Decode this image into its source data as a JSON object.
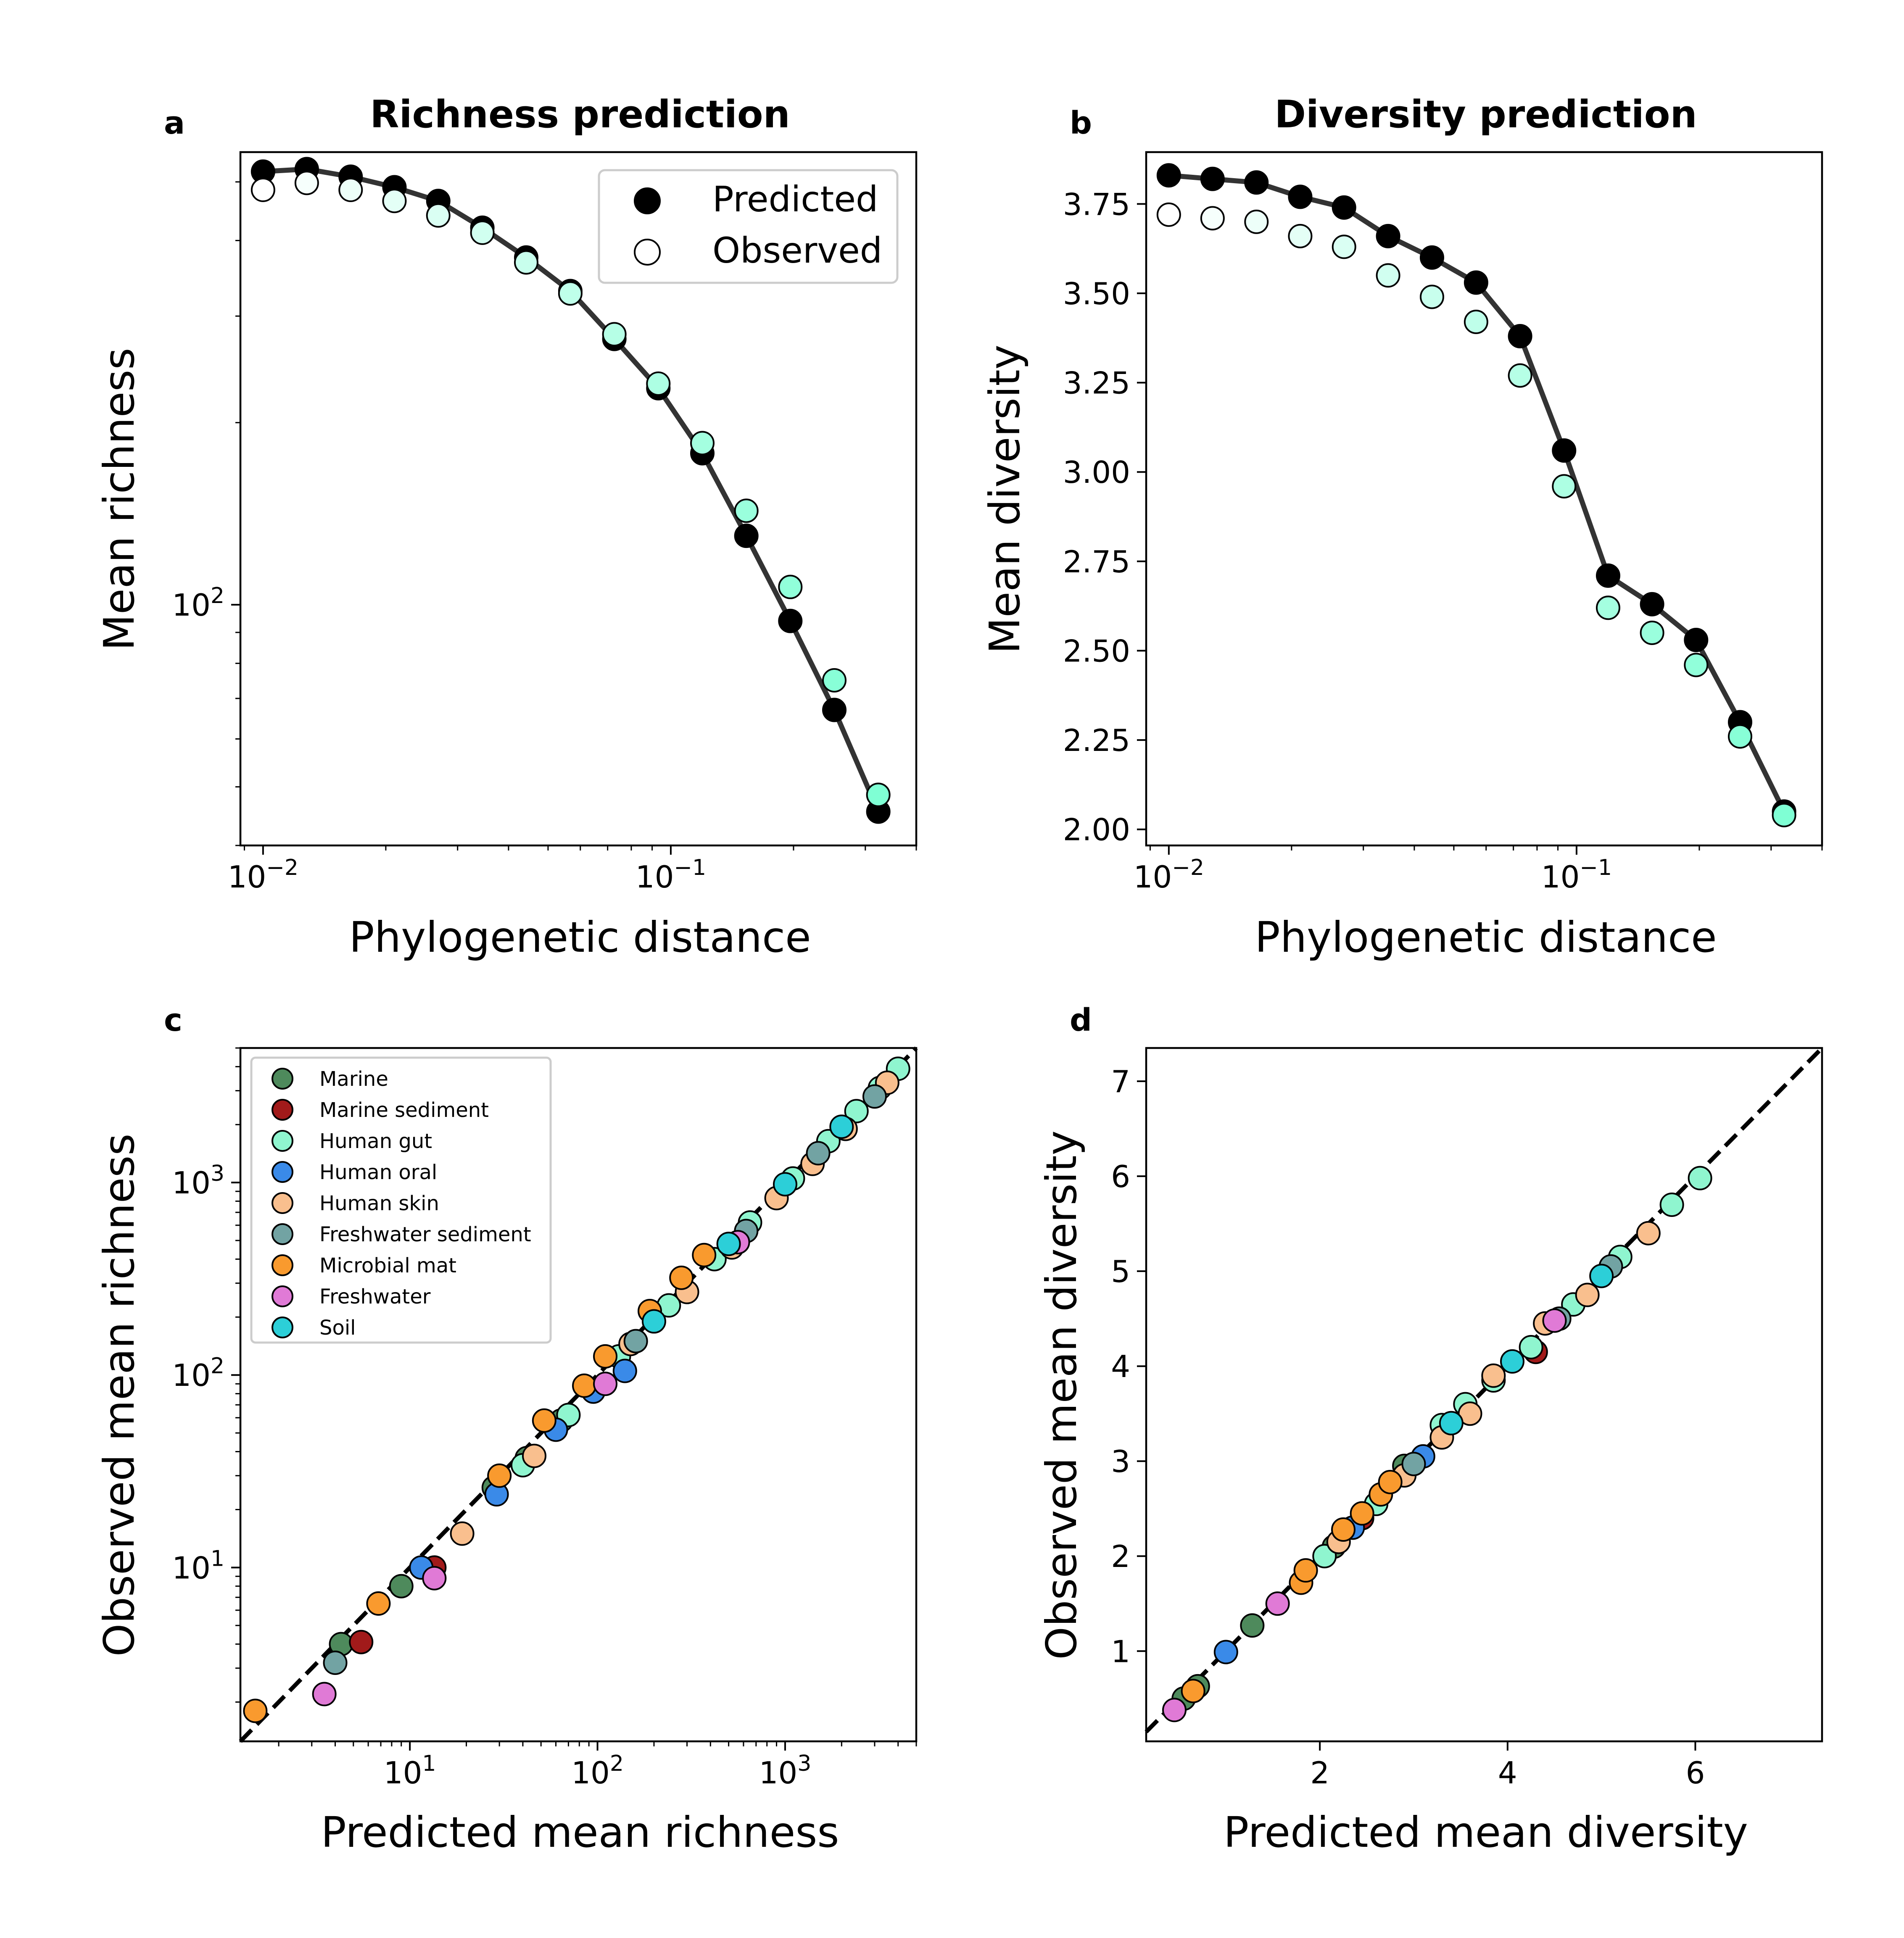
{
  "figure": {
    "panels": [
      {
        "letter": "a",
        "title": "Richness prediction",
        "xlabel": "Phylogenetic distance",
        "ylabel": "Mean richness",
        "xticks": [
          {
            "value": 0.01,
            "base": "10",
            "exp": "−2"
          },
          {
            "value": 0.1,
            "base": "10",
            "exp": "−1"
          }
        ],
        "yticks": [
          {
            "value": 100,
            "base": "10",
            "exp": "2"
          }
        ],
        "legend": [
          "Predicted",
          "Observed"
        ]
      },
      {
        "letter": "b",
        "title": "Diversity prediction",
        "xlabel": "Phylogenetic distance",
        "ylabel": "Mean diversity",
        "xticks": [
          {
            "value": 0.01,
            "base": "10",
            "exp": "−2"
          },
          {
            "value": 0.1,
            "base": "10",
            "exp": "−1"
          }
        ],
        "yticks": [
          {
            "value": 2.0,
            "label": "2.00"
          },
          {
            "value": 2.25,
            "label": "2.25"
          },
          {
            "value": 2.5,
            "label": "2.50"
          },
          {
            "value": 2.75,
            "label": "2.75"
          },
          {
            "value": 3.0,
            "label": "3.00"
          },
          {
            "value": 3.25,
            "label": "3.25"
          },
          {
            "value": 3.5,
            "label": "3.50"
          },
          {
            "value": 3.75,
            "label": "3.75"
          }
        ]
      },
      {
        "letter": "c",
        "title": "",
        "xlabel": "Predicted mean richness",
        "ylabel": "Observed mean richness",
        "xticks": [
          {
            "value": 10,
            "base": "10",
            "exp": "1"
          },
          {
            "value": 100,
            "base": "10",
            "exp": "2"
          },
          {
            "value": 1000,
            "base": "10",
            "exp": "3"
          }
        ],
        "yticks": [
          {
            "value": 10,
            "base": "10",
            "exp": "1"
          },
          {
            "value": 100,
            "base": "10",
            "exp": "2"
          },
          {
            "value": 1000,
            "base": "10",
            "exp": "3"
          }
        ]
      },
      {
        "letter": "d",
        "title": "",
        "xlabel": "Predicted mean diversity",
        "ylabel": "Observed mean diversity",
        "xticks": [
          {
            "value": 2,
            "label": "2"
          },
          {
            "value": 4,
            "label": "4"
          },
          {
            "value": 6,
            "label": "6"
          }
        ],
        "yticks": [
          {
            "value": 1,
            "label": "1"
          },
          {
            "value": 2,
            "label": "2"
          },
          {
            "value": 3,
            "label": "3"
          },
          {
            "value": 4,
            "label": "4"
          },
          {
            "value": 5,
            "label": "5"
          },
          {
            "value": 6,
            "label": "6"
          },
          {
            "value": 7,
            "label": "7"
          }
        ]
      }
    ],
    "habitat_colors": {
      "Marine": "#4e8a5c",
      "Marine sediment": "#a11a1a",
      "Human gut": "#8ff5cf",
      "Human oral": "#3a8ae8",
      "Human skin": "#f9bf8e",
      "Freshwater sediment": "#72a3a3",
      "Microbial mat": "#f99a2e",
      "Freshwater": "#e07ad6",
      "Soil": "#2ccfd8"
    }
  },
  "chart_data": [
    {
      "type": "line",
      "panel": "a",
      "title": "Richness prediction",
      "xlabel": "Phylogenetic distance",
      "ylabel": "Mean richness",
      "xscale": "log",
      "yscale": "log",
      "xlim": [
        0.0088,
        0.4
      ],
      "ylim": [
        40,
        560
      ],
      "legend_position": "upper right",
      "x": [
        0.01,
        0.0128,
        0.0164,
        0.021,
        0.0269,
        0.0345,
        0.0442,
        0.0567,
        0.0727,
        0.0932,
        0.1195,
        0.1532,
        0.1964,
        0.2518,
        0.3228
      ],
      "series": [
        {
          "name": "Predicted",
          "style": "filled",
          "values": [
            520,
            525,
            510,
            490,
            465,
            420,
            375,
            330,
            275,
            228,
            178,
            130,
            94,
            67,
            45.5
          ]
        },
        {
          "name": "Observed",
          "style": "open",
          "values": [
            485,
            498,
            485,
            465,
            440,
            412,
            368,
            327,
            280,
            232,
            185,
            143,
            107,
            75,
            48.5
          ]
        }
      ]
    },
    {
      "type": "line",
      "panel": "b",
      "title": "Diversity prediction",
      "xlabel": "Phylogenetic distance",
      "ylabel": "Mean diversity",
      "xscale": "log",
      "xlim": [
        0.0088,
        0.4
      ],
      "ylim": [
        1.955,
        3.895
      ],
      "x": [
        0.01,
        0.0128,
        0.0164,
        0.021,
        0.0269,
        0.0345,
        0.0442,
        0.0567,
        0.0727,
        0.0932,
        0.1195,
        0.1532,
        0.1964,
        0.2518,
        0.3228
      ],
      "series": [
        {
          "name": "Predicted",
          "style": "filled",
          "values": [
            3.83,
            3.82,
            3.81,
            3.77,
            3.74,
            3.66,
            3.6,
            3.53,
            3.38,
            3.06,
            2.71,
            2.63,
            2.53,
            2.3,
            2.05
          ]
        },
        {
          "name": "Observed",
          "style": "open",
          "values": [
            3.72,
            3.71,
            3.7,
            3.66,
            3.63,
            3.55,
            3.49,
            3.42,
            3.27,
            2.96,
            2.62,
            2.55,
            2.46,
            2.26,
            2.04
          ]
        }
      ]
    },
    {
      "type": "scatter",
      "panel": "c",
      "xlabel": "Predicted mean richness",
      "ylabel": "Observed mean richness",
      "xscale": "log",
      "yscale": "log",
      "xlim": [
        1.25,
        5000
      ],
      "ylim": [
        1.25,
        5000
      ],
      "reference_line": "y = x (dashed)",
      "legend_position": "upper left",
      "series": [
        {
          "name": "Marine",
          "x": [
            4.3,
            9.0,
            28,
            42,
            64
          ],
          "y": [
            4.0,
            8.0,
            26,
            37,
            58
          ]
        },
        {
          "name": "Marine sediment",
          "x": [
            5.5,
            13.5
          ],
          "y": [
            4.1,
            10.0
          ]
        },
        {
          "name": "Human gut",
          "x": [
            40,
            70,
            130,
            240,
            420,
            650,
            1100,
            1700,
            2400,
            3200,
            4000
          ],
          "y": [
            34,
            62,
            125,
            230,
            400,
            620,
            1050,
            1640,
            2350,
            3100,
            3900
          ]
        },
        {
          "name": "Human oral",
          "x": [
            11.5,
            29,
            60,
            95,
            140
          ],
          "y": [
            10.0,
            24,
            52,
            82,
            105
          ]
        },
        {
          "name": "Human skin",
          "x": [
            19,
            46,
            150,
            300,
            520,
            900,
            1400,
            2100,
            3500
          ],
          "y": [
            15,
            38,
            145,
            270,
            460,
            830,
            1250,
            1900,
            3300
          ]
        },
        {
          "name": "Freshwater sediment",
          "x": [
            4.0,
            160,
            620,
            1500,
            3000
          ],
          "y": [
            3.2,
            150,
            560,
            1420,
            2800
          ]
        },
        {
          "name": "Microbial mat",
          "x": [
            1.5,
            6.8,
            30,
            52,
            85,
            110,
            190,
            280,
            370
          ],
          "y": [
            1.8,
            6.5,
            30,
            58,
            88,
            125,
            215,
            320,
            420
          ]
        },
        {
          "name": "Freshwater",
          "x": [
            3.5,
            13.5,
            110,
            560
          ],
          "y": [
            2.2,
            8.8,
            90,
            490
          ]
        },
        {
          "name": "Soil",
          "x": [
            200,
            500,
            1000,
            2000
          ],
          "y": [
            190,
            480,
            980,
            1950
          ]
        }
      ]
    },
    {
      "type": "scatter",
      "panel": "d",
      "xlabel": "Predicted mean diversity",
      "ylabel": "Observed mean diversity",
      "xlim": [
        0.15,
        7.35
      ],
      "ylim": [
        0.05,
        7.35
      ],
      "reference_line": "y = x (dashed)",
      "series": [
        {
          "name": "Marine",
          "x": [
            0.55,
            0.7,
            1.28,
            2.15,
            2.9
          ],
          "y": [
            0.5,
            0.63,
            1.27,
            2.1,
            2.95
          ]
        },
        {
          "name": "Marine sediment",
          "x": [
            2.45,
            4.3
          ],
          "y": [
            2.4,
            4.15
          ]
        },
        {
          "name": "Human gut",
          "x": [
            2.05,
            2.6,
            3.3,
            3.55,
            3.85,
            4.25,
            4.7,
            5.2,
            5.75,
            6.05
          ],
          "y": [
            2.0,
            2.55,
            3.38,
            3.6,
            3.85,
            4.2,
            4.65,
            5.15,
            5.7,
            5.98
          ]
        },
        {
          "name": "Human oral",
          "x": [
            1.0,
            2.35,
            3.1
          ],
          "y": [
            0.99,
            2.3,
            3.05
          ]
        },
        {
          "name": "Human skin",
          "x": [
            2.2,
            2.9,
            3.3,
            3.6,
            3.85,
            4.4,
            4.85,
            5.5
          ],
          "y": [
            2.15,
            2.85,
            3.25,
            3.5,
            3.9,
            4.45,
            4.75,
            5.4
          ]
        },
        {
          "name": "Freshwater sediment",
          "x": [
            3.0,
            4.55,
            5.1
          ],
          "y": [
            2.97,
            4.5,
            5.05
          ]
        },
        {
          "name": "Microbial mat",
          "x": [
            0.65,
            1.8,
            1.85,
            2.25,
            2.45,
            2.65,
            2.75
          ],
          "y": [
            0.58,
            1.72,
            1.85,
            2.28,
            2.45,
            2.65,
            2.78
          ]
        },
        {
          "name": "Freshwater",
          "x": [
            0.45,
            1.55,
            4.5
          ],
          "y": [
            0.38,
            1.5,
            4.48
          ]
        },
        {
          "name": "Soil",
          "x": [
            3.4,
            4.05,
            5.0
          ],
          "y": [
            3.4,
            4.05,
            4.95
          ]
        }
      ]
    }
  ]
}
